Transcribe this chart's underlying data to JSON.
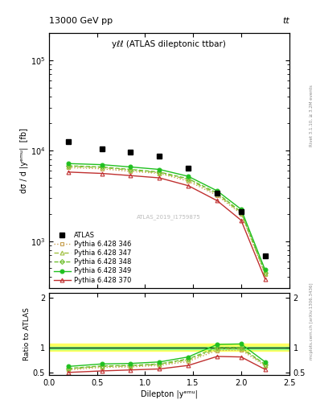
{
  "title_top": "13000 GeV pp",
  "title_right": "tt",
  "inner_title": "yℓℓ (ATLAS dileptonic ttbar)",
  "watermark": "ATLAS_2019_I1759875",
  "right_label_top": "Rivet 3.1.10, ≥ 3.2M events",
  "right_label_bot": "mcplots.cern.ch [arXiv:1306.3436]",
  "xlabel": "Dilepton |yᵉᵐᵘ|",
  "ylabel_main": "dσ / d |yᵉᵐᵘ|  [fb]",
  "ylabel_ratio": "Ratio to ATLAS",
  "x_centers": [
    0.2,
    0.55,
    0.85,
    1.15,
    1.45,
    1.75,
    2.0,
    2.25
  ],
  "atlas_values": [
    12600,
    10500,
    9700,
    8700,
    6400,
    3400,
    2100,
    680
  ],
  "pythia_346": [
    6500,
    6300,
    5900,
    5600,
    4600,
    3200,
    2000,
    430
  ],
  "pythia_347": [
    6700,
    6500,
    6100,
    5700,
    4800,
    3300,
    2050,
    440
  ],
  "pythia_348": [
    6800,
    6600,
    6200,
    5800,
    4900,
    3400,
    2100,
    450
  ],
  "pythia_349": [
    7200,
    7000,
    6600,
    6200,
    5200,
    3600,
    2250,
    480
  ],
  "pythia_370": [
    5800,
    5600,
    5300,
    5000,
    4100,
    2800,
    1700,
    380
  ],
  "ratio_346": [
    0.55,
    0.6,
    0.61,
    0.64,
    0.72,
    0.94,
    0.95,
    0.63
  ],
  "ratio_347": [
    0.57,
    0.62,
    0.63,
    0.66,
    0.75,
    0.97,
    0.98,
    0.65
  ],
  "ratio_348": [
    0.58,
    0.63,
    0.64,
    0.67,
    0.77,
    1.0,
    1.0,
    0.66
  ],
  "ratio_349": [
    0.62,
    0.67,
    0.68,
    0.71,
    0.81,
    1.06,
    1.07,
    0.71
  ],
  "ratio_370": [
    0.5,
    0.53,
    0.55,
    0.57,
    0.64,
    0.82,
    0.81,
    0.56
  ],
  "color_346": "#c8a050",
  "color_347": "#a0c040",
  "color_348": "#70c030",
  "color_349": "#20c020",
  "color_370": "#c03030",
  "band_yellow_lo": 0.93,
  "band_yellow_hi": 1.08,
  "band_green_lo": 0.97,
  "band_green_hi": 1.02,
  "xlim": [
    0,
    2.5
  ],
  "ylim_main": [
    300,
    200000
  ],
  "ylim_ratio": [
    0.45,
    2.1
  ],
  "ratio_yticks": [
    0.5,
    1.0,
    2.0
  ],
  "ratio_yticklabels": [
    "0.5",
    "1",
    "2"
  ]
}
